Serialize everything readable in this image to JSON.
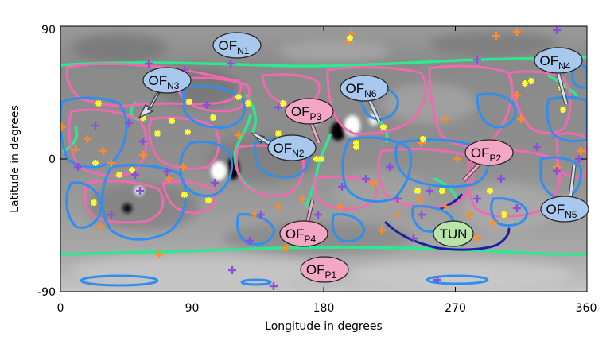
{
  "figure": {
    "xlabel": "Longitude in degrees",
    "ylabel": "Latitude in degrees",
    "xticks": [
      "0",
      "90",
      "180",
      "270",
      "360"
    ],
    "yticks": [
      "90",
      "0",
      "-90"
    ]
  },
  "regions": [
    {
      "id": "OF_N1",
      "main": "OF",
      "sub": "N1",
      "color": "#a9c8ee"
    },
    {
      "id": "OF_N2",
      "main": "OF",
      "sub": "N2",
      "color": "#a9c8ee"
    },
    {
      "id": "OF_N3",
      "main": "OF",
      "sub": "N3",
      "color": "#a9c8ee"
    },
    {
      "id": "OF_N4",
      "main": "OF",
      "sub": "N4",
      "color": "#a9c8ee"
    },
    {
      "id": "OF_N5",
      "main": "OF",
      "sub": "N5",
      "color": "#a9c8ee"
    },
    {
      "id": "OF_N6",
      "main": "OF",
      "sub": "N6",
      "color": "#a9c8ee"
    },
    {
      "id": "OF_P1",
      "main": "OF",
      "sub": "P1",
      "color": "#f4a7c4"
    },
    {
      "id": "OF_P2",
      "main": "OF",
      "sub": "P2",
      "color": "#f4a7c4"
    },
    {
      "id": "OF_P3",
      "main": "OF",
      "sub": "P3",
      "color": "#f4a7c4"
    },
    {
      "id": "OF_P4",
      "main": "OF",
      "sub": "P4",
      "color": "#f4a7c4"
    },
    {
      "id": "TUN",
      "main": "TUN",
      "sub": "",
      "color": "#b9e6a8"
    }
  ],
  "colors": {
    "polarity_boundary": "#2ee88f",
    "positive_open_field": "#f06ab0",
    "negative_open_field": "#2f8ef0",
    "tunnel_boundary": "#1b1fa6",
    "orange_marker": "#ff8c28",
    "purple_marker": "#8a50d8",
    "yellow_marker": "#ffff30"
  }
}
